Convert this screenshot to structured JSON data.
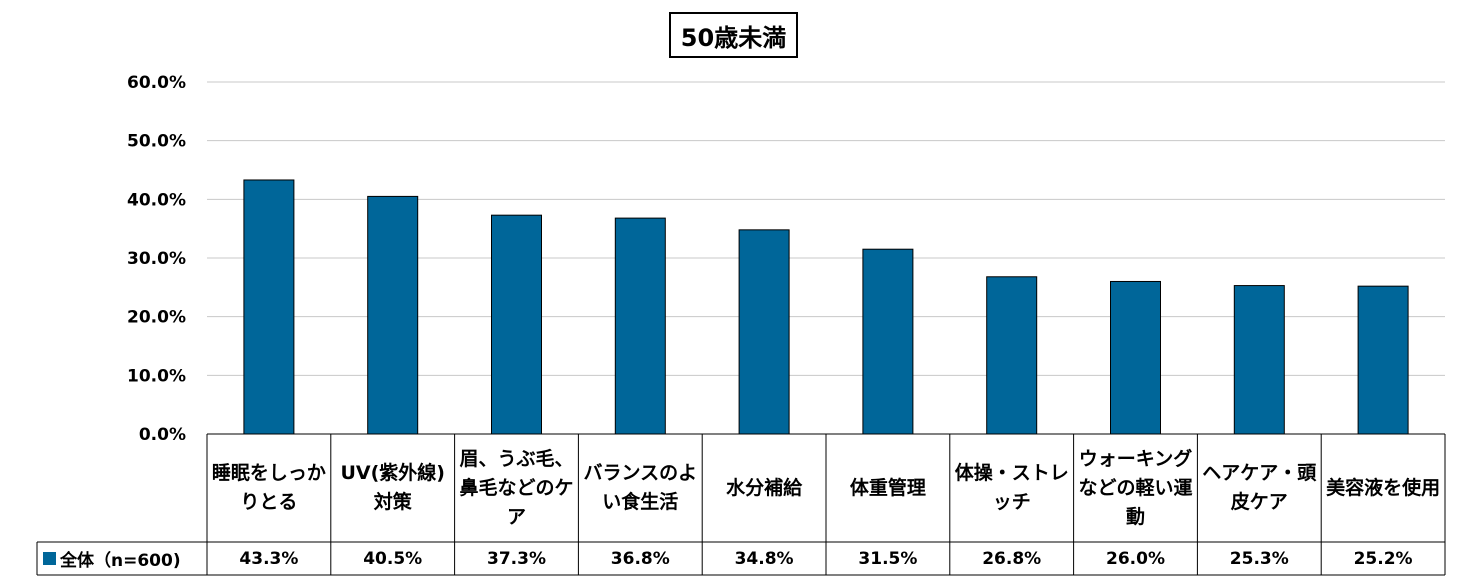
{
  "chart_data": {
    "type": "bar",
    "title": "50歳未満",
    "categories": [
      "睡眠をしっかりとる",
      "UV(紫外線)対策",
      "眉、うぶ毛、鼻毛などのケア",
      "バランスのよい食生活",
      "水分補給",
      "体重管理",
      "体操・ストレッチ",
      "ウォーキングなどの軽い運動",
      "ヘアケア・頭皮ケア",
      "美容液を使用"
    ],
    "series": [
      {
        "name": "全体（n=600)",
        "values": [
          43.3,
          40.5,
          37.3,
          36.8,
          34.8,
          31.5,
          26.8,
          26.0,
          25.3,
          25.2
        ],
        "value_labels": [
          "43.3%",
          "40.5%",
          "37.3%",
          "36.8%",
          "34.8%",
          "31.5%",
          "26.8%",
          "26.0%",
          "25.3%",
          "25.2%"
        ],
        "color": "#006699"
      }
    ],
    "ylim": [
      0,
      60
    ],
    "yticks": [
      "0.0%",
      "10.0%",
      "20.0%",
      "30.0%",
      "40.0%",
      "50.0%",
      "60.0%"
    ],
    "grid": true,
    "legend": "data-table-left",
    "xlabel": "",
    "ylabel": ""
  }
}
